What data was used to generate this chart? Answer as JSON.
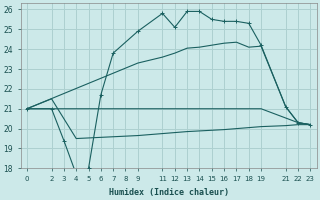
{
  "xlabel": "Humidex (Indice chaleur)",
  "bg_color": "#cce9e9",
  "grid_color": "#add0d0",
  "line_color": "#1a6060",
  "xlim": [
    -0.5,
    23.5
  ],
  "ylim": [
    18,
    26.3
  ],
  "xticks": [
    0,
    2,
    3,
    4,
    5,
    6,
    7,
    8,
    9,
    11,
    12,
    13,
    14,
    15,
    16,
    17,
    18,
    19,
    21,
    22,
    23
  ],
  "yticks": [
    18,
    19,
    20,
    21,
    22,
    23,
    24,
    25,
    26
  ],
  "line1_x": [
    0,
    2,
    3,
    4,
    5,
    6,
    7,
    9,
    11,
    12,
    13,
    14,
    15,
    16,
    17,
    18,
    19,
    21,
    22,
    23
  ],
  "line1_y": [
    21.0,
    21.0,
    19.4,
    17.7,
    18.0,
    21.7,
    23.8,
    24.9,
    25.8,
    25.1,
    25.9,
    25.9,
    25.5,
    25.4,
    25.4,
    25.3,
    24.2,
    21.1,
    20.3,
    20.2
  ],
  "line2_x": [
    0,
    2,
    19,
    22,
    23
  ],
  "line2_y": [
    21.0,
    21.0,
    21.0,
    20.3,
    20.2
  ],
  "line3_x": [
    0,
    2,
    4,
    9,
    11,
    13,
    16,
    17,
    18,
    19,
    21,
    22,
    23
  ],
  "line3_y": [
    21.0,
    21.5,
    19.5,
    19.65,
    19.75,
    19.85,
    19.95,
    20.0,
    20.05,
    20.1,
    20.15,
    20.2,
    20.2
  ],
  "line4_x": [
    0,
    9,
    11,
    12,
    13,
    14,
    15,
    16,
    17,
    18,
    19,
    21,
    22,
    23
  ],
  "line4_y": [
    21.0,
    23.3,
    23.6,
    23.8,
    24.05,
    24.1,
    24.2,
    24.3,
    24.35,
    24.1,
    24.15,
    21.1,
    20.3,
    20.2
  ]
}
